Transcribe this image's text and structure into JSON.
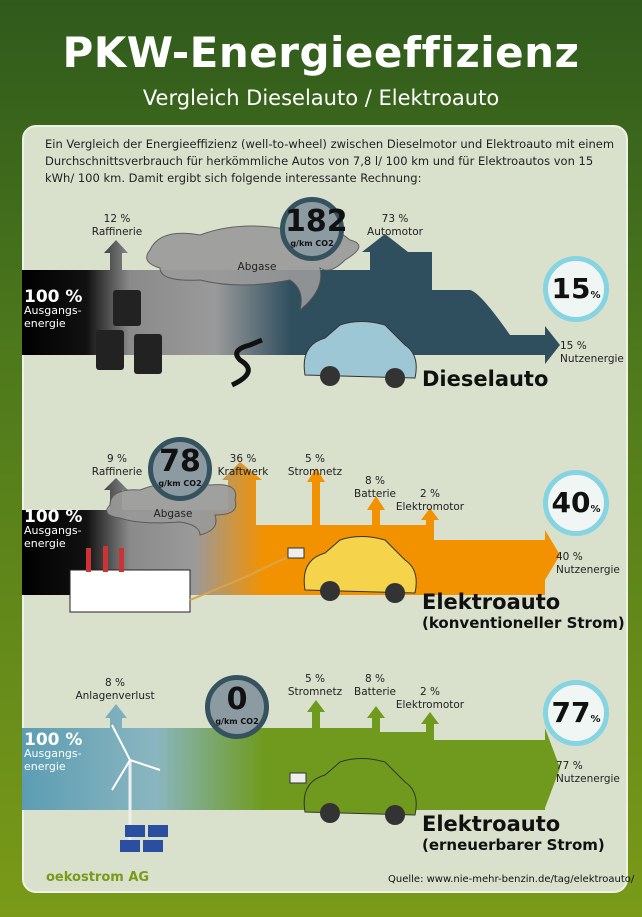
{
  "title": "PKW-Energieeffizienz",
  "subtitle": "Vergleich Dieselauto / Elektroauto",
  "intro": "Ein Vergleich der Energieeffizienz (well-to-wheel) zwischen Dieselmotor und Elektroauto mit einem Durchschnittsverbrauch für herkömmliche Autos von 7,8 l/ 100 km und für Elektroautos von 15 kWh/ 100 km. Damit ergibt sich folgende interessante Rechnung:",
  "colors": {
    "diesel": "#2f4f5e",
    "konventionell": "#f39200",
    "erneuerbar": "#6f9a1e",
    "accent_circle": "#86d3e2"
  },
  "sections": [
    {
      "name": "Dieselauto",
      "subname": "",
      "start_value": "100 %",
      "start_label": "Ausgangs-energie",
      "co2_value": "182",
      "co2_unit": "g/km CO2",
      "cloud_label": "Abgase",
      "efficiency": "15",
      "efficiency_unit": "%",
      "end_label_value": "15 %",
      "end_label": "Nutzenergie",
      "losses": [
        {
          "value": "12 %",
          "label": "Raffinerie"
        },
        {
          "value": "73 %",
          "label": "Automotor"
        }
      ],
      "icons": [
        "oil-barrels-icon",
        "fuel-nozzle-icon",
        "car-icon"
      ]
    },
    {
      "name": "Elektroauto",
      "subname": "(konventioneller Strom)",
      "start_value": "100 %",
      "start_label": "Ausgangs-energie",
      "co2_value": "78",
      "co2_unit": "g/km CO2",
      "cloud_label": "Abgase",
      "efficiency": "40",
      "efficiency_unit": "%",
      "end_label_value": "40 %",
      "end_label": "Nutzenergie",
      "losses": [
        {
          "value": "9 %",
          "label": "Raffinerie"
        },
        {
          "value": "36 %",
          "label": "Kraftwerk"
        },
        {
          "value": "5 %",
          "label": "Stromnetz"
        },
        {
          "value": "8 %",
          "label": "Batterie"
        },
        {
          "value": "2 %",
          "label": "Elektromotor"
        }
      ],
      "icons": [
        "power-plant-icon",
        "plug-icon",
        "car-icon"
      ]
    },
    {
      "name": "Elektroauto",
      "subname": "(erneuerbarer Strom)",
      "start_value": "100 %",
      "start_label": "Ausgangs-energie",
      "co2_value": "0",
      "co2_unit": "g/km CO2",
      "efficiency": "77",
      "efficiency_unit": "%",
      "end_label_value": "77 %",
      "end_label": "Nutzenergie",
      "losses": [
        {
          "value": "8 %",
          "label": "Anlagenverlust"
        },
        {
          "value": "5 %",
          "label": "Stromnetz"
        },
        {
          "value": "8 %",
          "label": "Batterie"
        },
        {
          "value": "2 %",
          "label": "Elektromotor"
        }
      ],
      "icons": [
        "wind-turbine-icon",
        "solar-panel-icon",
        "plug-icon",
        "car-icon"
      ]
    }
  ],
  "footer": {
    "logo": "oekostrom AG",
    "source": "Quelle: www.nie-mehr-benzin.de/tag/elektroauto/"
  }
}
